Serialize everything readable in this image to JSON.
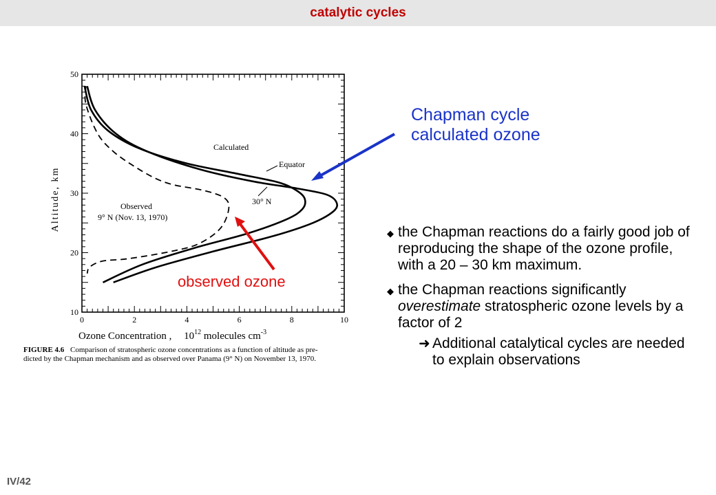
{
  "header": {
    "title": "catalytic cycles"
  },
  "footer": {
    "page_number": "IV/42"
  },
  "chart_data": {
    "type": "line",
    "xlabel": "Ozone   Concentration ,",
    "xlabel_units": {
      "base": "10",
      "exp": "12",
      "mid": " molecules  cm",
      "exp2": "-3"
    },
    "ylabel": "Altitude,  km",
    "xlim": [
      0,
      10
    ],
    "ylim": [
      10,
      50
    ],
    "x_ticks": [
      "0",
      "2",
      "4",
      "6",
      "8",
      "10"
    ],
    "y_ticks": [
      "10",
      "20",
      "30",
      "40",
      "50"
    ],
    "series": [
      {
        "name": "Equator",
        "style": "solid",
        "points": [
          [
            0.2,
            48
          ],
          [
            0.5,
            44
          ],
          [
            1.3,
            40
          ],
          [
            2.5,
            37
          ],
          [
            4.5,
            34
          ],
          [
            6.5,
            32
          ],
          [
            8.2,
            30.8
          ],
          [
            9.3,
            29.8
          ],
          [
            9.7,
            28.5
          ],
          [
            9.6,
            27
          ],
          [
            8.8,
            25
          ],
          [
            7.3,
            22.8
          ],
          [
            5.0,
            20.2
          ],
          [
            2.8,
            17.5
          ],
          [
            1.2,
            15
          ]
        ]
      },
      {
        "name": "30° N",
        "style": "solid",
        "points": [
          [
            0.1,
            48
          ],
          [
            0.35,
            44
          ],
          [
            1.0,
            40.5
          ],
          [
            2.2,
            37.5
          ],
          [
            4.0,
            35
          ],
          [
            6.0,
            33.2
          ],
          [
            7.5,
            31.8
          ],
          [
            8.2,
            30.4
          ],
          [
            8.5,
            29
          ],
          [
            8.4,
            27.3
          ],
          [
            7.8,
            25.6
          ],
          [
            6.3,
            23.2
          ],
          [
            4.3,
            20.8
          ],
          [
            2.3,
            18
          ],
          [
            0.8,
            15
          ]
        ]
      },
      {
        "name": "Observed 9° N (Nov. 13, 1970)",
        "style": "dashed",
        "points": [
          [
            0.15,
            48
          ],
          [
            0.15,
            45
          ],
          [
            0.6,
            40
          ],
          [
            1.2,
            37
          ],
          [
            2.0,
            34.5
          ],
          [
            2.8,
            32.5
          ],
          [
            3.5,
            31.4
          ],
          [
            4.6,
            30.5
          ],
          [
            5.4,
            29.3
          ],
          [
            5.6,
            27.5
          ],
          [
            5.3,
            24.2
          ],
          [
            4.5,
            21.6
          ],
          [
            3.5,
            20.3
          ],
          [
            1.8,
            19
          ],
          [
            0.8,
            18.6
          ],
          [
            0.3,
            17.6
          ],
          [
            0.2,
            16.5
          ]
        ]
      }
    ],
    "annotations": {
      "calculated": "Calculated",
      "equator": "Equator",
      "lat30": "30° N",
      "observed_line1": "Observed",
      "observed_line2": "9° N (Nov. 13, 1970)"
    },
    "caption": {
      "label": "FIGURE 4.6",
      "line1": "Comparison of stratospheric ozone concentrations as a function of altitude as pre-",
      "line2": "dicted by the Chapman mechanism and as observed over Panama (9° N) on November 13, 1970."
    }
  },
  "callouts": {
    "blue_line1": "Chapman cycle",
    "blue_line2": "calculated ozone",
    "red": "observed ozone",
    "blue_color": "#1a33c8",
    "red_color": "#e01010"
  },
  "bullets": {
    "b1": "the Chapman reactions do a fairly good job of reproducing the shape of the ozone profile, with a 20 – 30 km maximum.",
    "b2_pre": "the Chapman reactions significantly ",
    "b2_em": "overestimate",
    "b2_post": " stratospheric ozone levels by a factor of 2",
    "sub": "Additional catalytical cycles are needed to explain observations"
  }
}
